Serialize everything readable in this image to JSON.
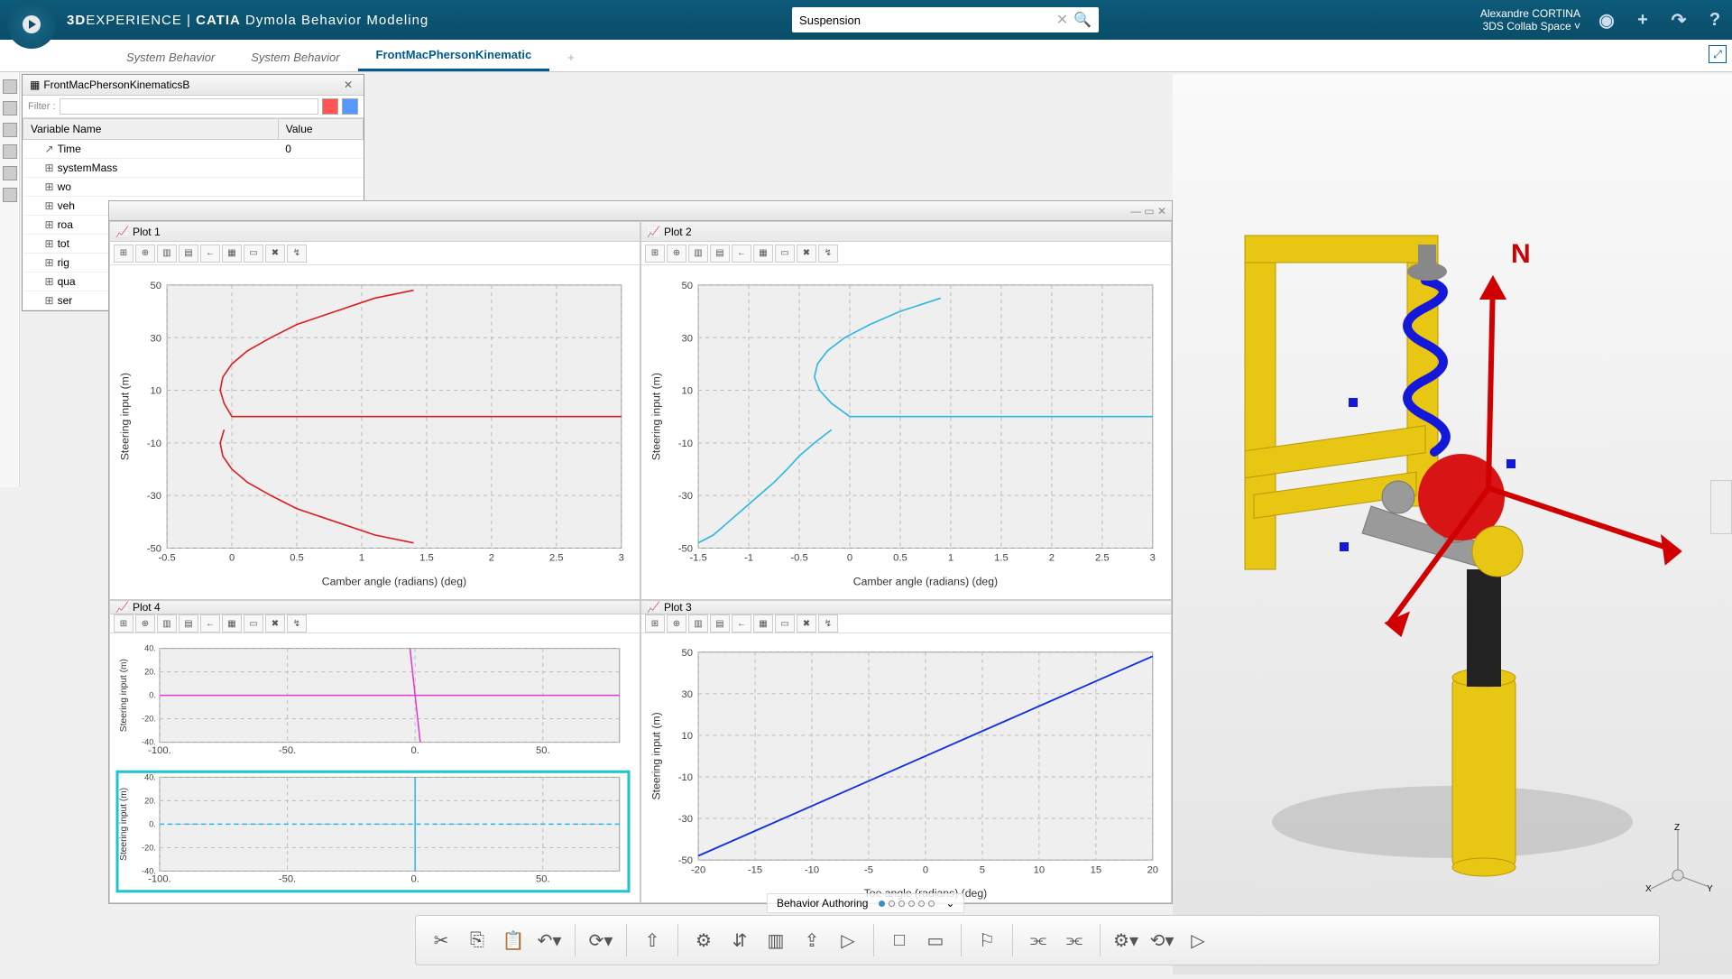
{
  "header": {
    "brand_prefix": "3D",
    "brand_main": "EXPERIENCE",
    "brand_sep": " | ",
    "brand_app_bold": "CATIA",
    "brand_app_rest": " Dymola Behavior Modeling",
    "search_value": "Suspension",
    "user_name": "Alexandre CORTINA",
    "user_space": "3DS Collab Space"
  },
  "tabs": {
    "items": [
      {
        "label": "System Behavior",
        "active": false
      },
      {
        "label": "System Behavior",
        "active": false
      },
      {
        "label": "FrontMacPhersonKinematic",
        "active": true
      }
    ],
    "add_label": "+"
  },
  "var_panel": {
    "title": "FrontMacPhersonKinematicsB",
    "filter_label": "Filter :",
    "columns": [
      "Variable Name",
      "Value"
    ],
    "rows": [
      {
        "name": "Time",
        "value": "0",
        "indent": 1,
        "icon": "~"
      },
      {
        "name": "systemMass",
        "value": "",
        "indent": 1,
        "icon": "+"
      },
      {
        "name": "wo",
        "value": "",
        "indent": 1,
        "icon": "+"
      },
      {
        "name": "veh",
        "value": "",
        "indent": 1,
        "icon": "+"
      },
      {
        "name": "roa",
        "value": "",
        "indent": 1,
        "icon": "+"
      },
      {
        "name": "tot",
        "value": "",
        "indent": 1,
        "icon": "+"
      },
      {
        "name": "rig",
        "value": "",
        "indent": 1,
        "icon": "+"
      },
      {
        "name": "qua",
        "value": "",
        "indent": 1,
        "icon": "+"
      },
      {
        "name": "ser",
        "value": "",
        "indent": 1,
        "icon": "+"
      }
    ]
  },
  "plots": {
    "panels": [
      {
        "id": "plot1",
        "title": "Plot 1",
        "type": "line",
        "xlabel": "Camber angle (radians) (deg)",
        "ylabel": "Steering input (m)",
        "xlim": [
          -0.5,
          3.0
        ],
        "xtick_step": 0.5,
        "ylim": [
          -50,
          50
        ],
        "ytick_step": 20,
        "background_color": "#efefef",
        "grid_color": "#bbbbbb",
        "series": [
          {
            "color": "#d8201f",
            "width": 1.6,
            "points": [
              [
                3.0,
                0
              ],
              [
                2.5,
                0
              ],
              [
                2.0,
                0
              ],
              [
                1.5,
                0
              ],
              [
                1.0,
                0
              ],
              [
                0.5,
                0
              ],
              [
                0.0,
                0
              ],
              [
                -0.06,
                5
              ],
              [
                -0.09,
                10
              ],
              [
                -0.07,
                15
              ],
              [
                0.0,
                20
              ],
              [
                0.12,
                25
              ],
              [
                0.3,
                30
              ],
              [
                0.5,
                35
              ],
              [
                0.8,
                40
              ],
              [
                1.1,
                45
              ],
              [
                1.4,
                48
              ]
            ]
          },
          {
            "color": "#d8201f",
            "width": 1.6,
            "points": [
              [
                -0.06,
                -5
              ],
              [
                -0.09,
                -10
              ],
              [
                -0.07,
                -15
              ],
              [
                0.0,
                -20
              ],
              [
                0.12,
                -25
              ],
              [
                0.3,
                -30
              ],
              [
                0.5,
                -35
              ],
              [
                0.8,
                -40
              ],
              [
                1.1,
                -45
              ],
              [
                1.4,
                -48
              ]
            ]
          }
        ]
      },
      {
        "id": "plot2",
        "title": "Plot 2",
        "type": "line",
        "xlabel": "Camber angle (radians) (deg)",
        "ylabel": "Steering input (m)",
        "xlim": [
          -1.5,
          3.0
        ],
        "xtick_step": 0.5,
        "ylim": [
          -50,
          50
        ],
        "ytick_step": 20,
        "background_color": "#efefef",
        "grid_color": "#bbbbbb",
        "series": [
          {
            "color": "#2bb7e5",
            "width": 1.6,
            "points": [
              [
                3.0,
                0
              ],
              [
                2.0,
                0
              ],
              [
                1.0,
                0
              ],
              [
                0.3,
                0
              ],
              [
                0.0,
                0
              ],
              [
                -0.18,
                5
              ],
              [
                -0.3,
                10
              ],
              [
                -0.35,
                15
              ],
              [
                -0.32,
                20
              ],
              [
                -0.22,
                25
              ],
              [
                -0.05,
                30
              ],
              [
                0.2,
                35
              ],
              [
                0.5,
                40
              ],
              [
                0.9,
                45
              ]
            ]
          },
          {
            "color": "#2bb7e5",
            "width": 1.6,
            "points": [
              [
                -0.18,
                -5
              ],
              [
                -0.35,
                -10
              ],
              [
                -0.5,
                -15
              ],
              [
                -0.62,
                -20
              ],
              [
                -0.75,
                -25
              ],
              [
                -0.9,
                -30
              ],
              [
                -1.05,
                -35
              ],
              [
                -1.2,
                -40
              ],
              [
                -1.35,
                -45
              ],
              [
                -1.5,
                -48
              ]
            ]
          }
        ]
      },
      {
        "id": "plot4",
        "title": "Plot 4",
        "type": "dual-small",
        "xlabel": "",
        "ylabel_top": "Steering input (m)",
        "ylabel_bot": "Steering input (m)",
        "xlim": [
          -100,
          80
        ],
        "xtick_step": 50,
        "ylim": [
          -40,
          40
        ],
        "ytick_step": 20,
        "background_color": "#efefef",
        "selected_color": "#1fc4cf",
        "series_top": [
          {
            "color": "#e238d6",
            "width": 1.5,
            "points": [
              [
                -100,
                0
              ],
              [
                -50,
                0
              ],
              [
                0,
                0
              ],
              [
                50,
                0
              ],
              [
                80,
                0
              ]
            ]
          },
          {
            "color": "#e238d6",
            "width": 1.5,
            "points": [
              [
                2,
                -40
              ],
              [
                1,
                -20
              ],
              [
                0,
                0
              ],
              [
                -1,
                20
              ],
              [
                -2,
                40
              ]
            ]
          }
        ],
        "series_bot": [
          {
            "color": "#2bb7e5",
            "width": 1.5,
            "dash": "5 4",
            "points": [
              [
                -100,
                0
              ],
              [
                80,
                0
              ]
            ]
          },
          {
            "color": "#2bb7e5",
            "width": 1.5,
            "points": [
              [
                0,
                -40
              ],
              [
                0,
                40
              ]
            ]
          }
        ]
      },
      {
        "id": "plot3",
        "title": "Plot 3",
        "type": "line",
        "xlabel": "Toe angle (radians) (deg)",
        "ylabel": "Steering input (m)",
        "xlim": [
          -20,
          20
        ],
        "xtick_step": 5,
        "ylim": [
          -50,
          50
        ],
        "ytick_step": 20,
        "background_color": "#efefef",
        "grid_color": "#bbbbbb",
        "series": [
          {
            "color": "#1030e0",
            "width": 1.8,
            "points": [
              [
                -20,
                -48
              ],
              [
                -15,
                -36
              ],
              [
                -10,
                -24
              ],
              [
                -5,
                -12
              ],
              [
                0,
                0
              ],
              [
                5,
                12
              ],
              [
                10,
                24
              ],
              [
                15,
                36
              ],
              [
                20,
                48
              ]
            ]
          }
        ]
      }
    ]
  },
  "behavior_bar": {
    "label": "Behavior Authoring"
  },
  "axis_gizmo": {
    "z": "Z",
    "x": "X",
    "y": "Y"
  },
  "compass_n": "N",
  "colors": {
    "header_bg": "#0a4d68",
    "accent": "#005a8c",
    "suspension_frame": "#e8c614",
    "suspension_spring": "#1418d8",
    "suspension_ball": "#d81414",
    "suspension_arm": "#9a9a9a"
  }
}
